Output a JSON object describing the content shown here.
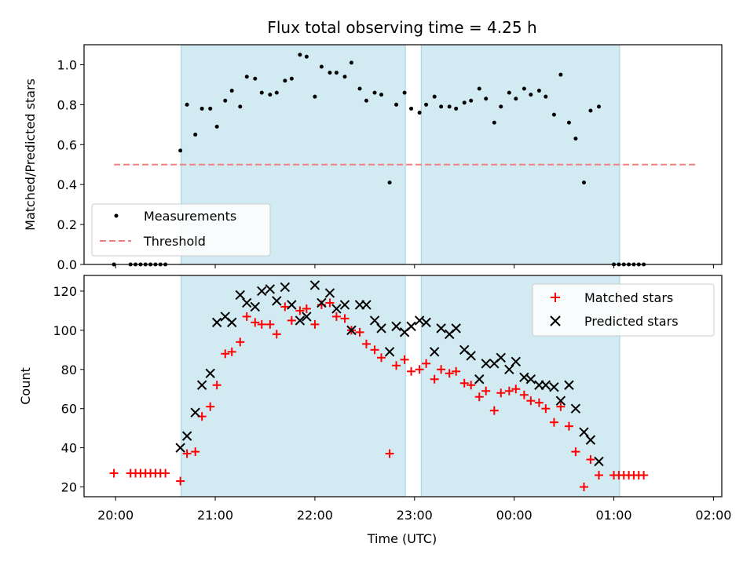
{
  "chart_data": {
    "title": "Flux total observing time = 4.25 h",
    "x_label": "Time (UTC)",
    "x_ticks": [
      {
        "t": 0,
        "label": "20:00"
      },
      {
        "t": 60,
        "label": "21:00"
      },
      {
        "t": 120,
        "label": "22:00"
      },
      {
        "t": 180,
        "label": "23:00"
      },
      {
        "t": 240,
        "label": "00:00"
      },
      {
        "t": 300,
        "label": "01:00"
      },
      {
        "t": 360,
        "label": "02:00"
      }
    ],
    "x_range_minutes": [
      -19,
      365
    ],
    "shaded_spans_minutes": [
      [
        39.5,
        174.5
      ],
      [
        184,
        303.5
      ]
    ],
    "shade_color": "#add8e6",
    "top_panel": {
      "type": "scatter",
      "ylabel": "Matched/Predicted stars",
      "ylim": [
        0,
        1.1
      ],
      "y_ticks": [
        "0.0",
        "0.2",
        "0.4",
        "0.6",
        "0.8",
        "1.0"
      ],
      "threshold": {
        "name": "Threshold",
        "value": 0.5,
        "x_range_minutes": [
          -1,
          349
        ],
        "color": "#f08080"
      },
      "legend": {
        "position": "lower-left",
        "entries": [
          "Measurements",
          "Threshold"
        ]
      }
    },
    "bottom_panel": {
      "type": "scatter",
      "ylabel": "Count",
      "ylim": [
        15,
        128
      ],
      "y_ticks": [
        "20",
        "40",
        "60",
        "80",
        "100",
        "120"
      ],
      "legend": {
        "position": "upper-right",
        "entries": [
          "Matched stars",
          "Predicted stars"
        ]
      }
    },
    "series": [
      {
        "name": "Measurements",
        "panel": "top",
        "color": "#000000",
        "points": [
          [
            -1,
            0
          ],
          [
            9,
            0
          ],
          [
            12,
            0
          ],
          [
            15,
            0
          ],
          [
            18,
            0
          ],
          [
            21,
            0
          ],
          [
            24,
            0
          ],
          [
            27,
            0
          ],
          [
            30,
            0
          ],
          [
            39,
            0.57
          ],
          [
            43,
            0.8
          ],
          [
            48,
            0.65
          ],
          [
            52,
            0.78
          ],
          [
            57,
            0.78
          ],
          [
            61,
            0.69
          ],
          [
            66,
            0.82
          ],
          [
            70,
            0.87
          ],
          [
            75,
            0.79
          ],
          [
            79,
            0.94
          ],
          [
            84,
            0.93
          ],
          [
            88,
            0.86
          ],
          [
            93,
            0.85
          ],
          [
            97,
            0.86
          ],
          [
            102,
            0.92
          ],
          [
            106,
            0.93
          ],
          [
            111,
            1.05
          ],
          [
            115,
            1.04
          ],
          [
            120,
            0.84
          ],
          [
            124,
            0.99
          ],
          [
            129,
            0.96
          ],
          [
            133,
            0.96
          ],
          [
            138,
            0.94
          ],
          [
            142,
            1.01
          ],
          [
            147,
            0.88
          ],
          [
            151,
            0.82
          ],
          [
            156,
            0.86
          ],
          [
            160,
            0.85
          ],
          [
            165,
            0.41
          ],
          [
            169,
            0.8
          ],
          [
            174,
            0.86
          ],
          [
            178,
            0.78
          ],
          [
            183,
            0.76
          ],
          [
            187,
            0.8
          ],
          [
            192,
            0.84
          ],
          [
            196,
            0.79
          ],
          [
            201,
            0.79
          ],
          [
            205,
            0.78
          ],
          [
            210,
            0.81
          ],
          [
            214,
            0.82
          ],
          [
            219,
            0.88
          ],
          [
            223,
            0.83
          ],
          [
            228,
            0.71
          ],
          [
            232,
            0.79
          ],
          [
            237,
            0.86
          ],
          [
            241,
            0.83
          ],
          [
            246,
            0.88
          ],
          [
            250,
            0.85
          ],
          [
            255,
            0.87
          ],
          [
            259,
            0.84
          ],
          [
            264,
            0.75
          ],
          [
            268,
            0.95
          ],
          [
            273,
            0.71
          ],
          [
            277,
            0.63
          ],
          [
            282,
            0.41
          ],
          [
            286,
            0.77
          ],
          [
            291,
            0.79
          ],
          [
            300,
            0
          ],
          [
            303,
            0
          ],
          [
            306,
            0
          ],
          [
            309,
            0
          ],
          [
            312,
            0
          ],
          [
            315,
            0
          ],
          [
            318,
            0
          ]
        ]
      },
      {
        "name": "Matched stars",
        "panel": "bottom",
        "color": "#ff0000",
        "marker": "plus",
        "points": [
          [
            -1,
            27
          ],
          [
            9,
            27
          ],
          [
            12,
            27
          ],
          [
            15,
            27
          ],
          [
            18,
            27
          ],
          [
            21,
            27
          ],
          [
            24,
            27
          ],
          [
            27,
            27
          ],
          [
            30,
            27
          ],
          [
            39,
            23
          ],
          [
            43,
            37
          ],
          [
            48,
            38
          ],
          [
            52,
            56
          ],
          [
            57,
            61
          ],
          [
            61,
            72
          ],
          [
            66,
            88
          ],
          [
            70,
            89
          ],
          [
            75,
            94
          ],
          [
            79,
            107
          ],
          [
            84,
            104
          ],
          [
            88,
            103
          ],
          [
            93,
            103
          ],
          [
            97,
            98
          ],
          [
            102,
            112
          ],
          [
            106,
            105
          ],
          [
            111,
            110
          ],
          [
            115,
            111
          ],
          [
            120,
            103
          ],
          [
            124,
            113
          ],
          [
            129,
            114
          ],
          [
            133,
            107
          ],
          [
            138,
            106
          ],
          [
            142,
            100
          ],
          [
            147,
            99
          ],
          [
            151,
            93
          ],
          [
            156,
            90
          ],
          [
            160,
            86
          ],
          [
            165,
            37
          ],
          [
            169,
            82
          ],
          [
            174,
            85
          ],
          [
            178,
            79
          ],
          [
            183,
            80
          ],
          [
            187,
            83
          ],
          [
            192,
            75
          ],
          [
            196,
            80
          ],
          [
            201,
            78
          ],
          [
            205,
            79
          ],
          [
            210,
            73
          ],
          [
            214,
            72
          ],
          [
            219,
            66
          ],
          [
            223,
            69
          ],
          [
            228,
            59
          ],
          [
            232,
            68
          ],
          [
            237,
            69
          ],
          [
            241,
            70
          ],
          [
            246,
            67
          ],
          [
            250,
            64
          ],
          [
            255,
            63
          ],
          [
            259,
            60
          ],
          [
            264,
            53
          ],
          [
            268,
            61
          ],
          [
            273,
            51
          ],
          [
            277,
            38
          ],
          [
            282,
            20
          ],
          [
            286,
            34
          ],
          [
            291,
            26
          ],
          [
            300,
            26
          ],
          [
            303,
            26
          ],
          [
            306,
            26
          ],
          [
            309,
            26
          ],
          [
            312,
            26
          ],
          [
            315,
            26
          ],
          [
            318,
            26
          ]
        ]
      },
      {
        "name": "Predicted stars",
        "panel": "bottom",
        "color": "#000000",
        "marker": "x",
        "points": [
          [
            39,
            40
          ],
          [
            43,
            46
          ],
          [
            48,
            58
          ],
          [
            52,
            72
          ],
          [
            57,
            78
          ],
          [
            61,
            104
          ],
          [
            66,
            107
          ],
          [
            70,
            104
          ],
          [
            75,
            118
          ],
          [
            79,
            114
          ],
          [
            84,
            112
          ],
          [
            88,
            120
          ],
          [
            93,
            121
          ],
          [
            97,
            115
          ],
          [
            102,
            122
          ],
          [
            106,
            113
          ],
          [
            111,
            105
          ],
          [
            115,
            107
          ],
          [
            120,
            123
          ],
          [
            124,
            114
          ],
          [
            129,
            119
          ],
          [
            133,
            111
          ],
          [
            138,
            113
          ],
          [
            142,
            100
          ],
          [
            147,
            113
          ],
          [
            151,
            113
          ],
          [
            156,
            105
          ],
          [
            160,
            101
          ],
          [
            165,
            89
          ],
          [
            169,
            102
          ],
          [
            174,
            99
          ],
          [
            178,
            102
          ],
          [
            183,
            105
          ],
          [
            187,
            104
          ],
          [
            192,
            89
          ],
          [
            196,
            101
          ],
          [
            201,
            98
          ],
          [
            205,
            101
          ],
          [
            210,
            90
          ],
          [
            214,
            87
          ],
          [
            219,
            75
          ],
          [
            223,
            83
          ],
          [
            228,
            83
          ],
          [
            232,
            86
          ],
          [
            237,
            80
          ],
          [
            241,
            84
          ],
          [
            246,
            76
          ],
          [
            250,
            75
          ],
          [
            255,
            72
          ],
          [
            259,
            72
          ],
          [
            264,
            71
          ],
          [
            268,
            64
          ],
          [
            273,
            72
          ],
          [
            277,
            60
          ],
          [
            282,
            48
          ],
          [
            286,
            44
          ],
          [
            291,
            33
          ]
        ]
      }
    ]
  }
}
